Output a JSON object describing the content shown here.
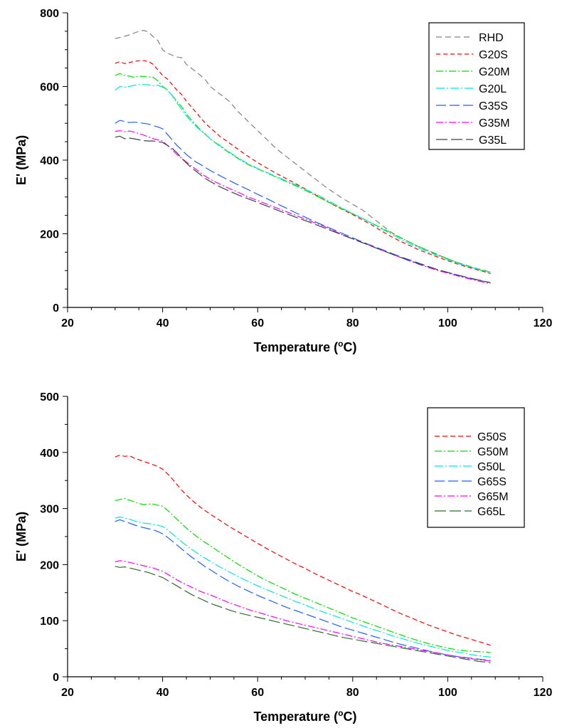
{
  "chart_data": [
    {
      "type": "line",
      "title": "",
      "xlabel": "Temperature (",
      "xlabel_sup": "o",
      "xlabel_end": "C)",
      "ylabel": "E' (MPa)",
      "xlim": [
        20,
        120
      ],
      "ylim": [
        0,
        800
      ],
      "xticks": [
        "20",
        "40",
        "60",
        "80",
        "100",
        "120"
      ],
      "yticks": [
        "0",
        "200",
        "400",
        "600",
        "800"
      ],
      "legend_position": "top-right",
      "x": [
        30,
        31,
        32,
        33,
        34,
        35,
        36,
        37,
        38,
        39,
        40,
        41,
        42,
        43,
        44,
        45,
        46,
        47,
        48,
        49,
        50,
        52,
        54,
        56,
        58,
        60,
        62,
        64,
        66,
        68,
        70,
        72,
        74,
        76,
        78,
        80,
        82,
        84,
        86,
        88,
        90,
        92,
        94,
        96,
        98,
        100,
        102,
        104,
        106,
        108,
        109
      ],
      "series": [
        {
          "name": "RHD",
          "color": "#808080",
          "dash": "8,5",
          "values": [
            730,
            733,
            736,
            740,
            745,
            750,
            752,
            748,
            735,
            725,
            700,
            690,
            685,
            680,
            678,
            660,
            650,
            640,
            630,
            618,
            600,
            580,
            560,
            530,
            505,
            480,
            455,
            430,
            410,
            390,
            370,
            350,
            330,
            312,
            295,
            280,
            265,
            245,
            225,
            205,
            190,
            177,
            164,
            153,
            142,
            132,
            122,
            114,
            106,
            100,
            95
          ]
        },
        {
          "name": "G20S",
          "color": "#ff0000",
          "dash": "6,4",
          "values": [
            663,
            667,
            662,
            665,
            668,
            670,
            670,
            668,
            660,
            645,
            630,
            620,
            605,
            590,
            578,
            560,
            545,
            530,
            515,
            500,
            488,
            465,
            447,
            428,
            410,
            393,
            378,
            363,
            350,
            336,
            322,
            307,
            292,
            278,
            265,
            252,
            238,
            224,
            208,
            193,
            180,
            168,
            156,
            146,
            136,
            127,
            118,
            110,
            103,
            96,
            92
          ]
        },
        {
          "name": "G20M",
          "color": "#00dd00",
          "dash": "10,3,2,3",
          "values": [
            630,
            635,
            630,
            628,
            625,
            628,
            627,
            626,
            625,
            615,
            600,
            590,
            575,
            560,
            545,
            525,
            510,
            495,
            482,
            470,
            458,
            438,
            420,
            403,
            388,
            376,
            365,
            353,
            342,
            330,
            318,
            305,
            292,
            279,
            266,
            254,
            242,
            229,
            216,
            203,
            190,
            177,
            165,
            154,
            143,
            132,
            122,
            113,
            105,
            97,
            93
          ]
        },
        {
          "name": "G20L",
          "color": "#00e5e5",
          "dash": "12,3,2,3",
          "values": [
            590,
            600,
            598,
            600,
            603,
            605,
            605,
            604,
            602,
            603,
            598,
            590,
            575,
            555,
            538,
            520,
            505,
            492,
            480,
            470,
            458,
            440,
            422,
            405,
            390,
            377,
            366,
            355,
            344,
            333,
            321,
            309,
            296,
            282,
            268,
            255,
            242,
            228,
            214,
            200,
            186,
            173,
            161,
            150,
            140,
            130,
            120,
            112,
            105,
            99,
            96
          ]
        },
        {
          "name": "G35S",
          "color": "#2060ff",
          "dash": "14,5",
          "values": [
            500,
            508,
            505,
            502,
            503,
            502,
            500,
            498,
            494,
            490,
            485,
            470,
            455,
            440,
            428,
            415,
            405,
            395,
            388,
            380,
            372,
            358,
            345,
            332,
            320,
            307,
            295,
            282,
            270,
            257,
            245,
            233,
            222,
            211,
            200,
            189,
            178,
            168,
            158,
            148,
            138,
            129,
            120,
            111,
            102,
            95,
            88,
            81,
            75,
            70,
            68
          ]
        },
        {
          "name": "G35M",
          "color": "#ff00ff",
          "dash": "10,3,2,3",
          "values": [
            478,
            480,
            477,
            479,
            476,
            472,
            468,
            463,
            458,
            455,
            452,
            440,
            428,
            415,
            405,
            395,
            385,
            375,
            365,
            356,
            348,
            335,
            323,
            312,
            300,
            290,
            280,
            270,
            260,
            250,
            240,
            230,
            220,
            208,
            197,
            186,
            176,
            166,
            156,
            146,
            136,
            126,
            117,
            108,
            100,
            93,
            86,
            79,
            73,
            67,
            64
          ]
        },
        {
          "name": "G35L",
          "color": "#404040",
          "dash": "16,5",
          "values": [
            462,
            465,
            458,
            460,
            458,
            455,
            453,
            452,
            452,
            450,
            448,
            440,
            432,
            420,
            405,
            392,
            380,
            370,
            360,
            350,
            342,
            328,
            316,
            305,
            295,
            285,
            275,
            265,
            255,
            245,
            236,
            226,
            216,
            206,
            196,
            186,
            176,
            166,
            156,
            146,
            136,
            127,
            118,
            110,
            102,
            95,
            88,
            82,
            76,
            70,
            67
          ]
        }
      ]
    },
    {
      "type": "line",
      "title": "",
      "xlabel": "Temperature (",
      "xlabel_sup": "o",
      "xlabel_end": "C)",
      "ylabel": "E' (MPa)",
      "xlim": [
        20,
        120
      ],
      "ylim": [
        0,
        500
      ],
      "xticks": [
        "20",
        "40",
        "60",
        "80",
        "100",
        "120"
      ],
      "yticks": [
        "0",
        "100",
        "200",
        "300",
        "400",
        "500"
      ],
      "legend_position": "top-right",
      "x": [
        30,
        31,
        32,
        33,
        34,
        35,
        36,
        37,
        38,
        39,
        40,
        41,
        42,
        43,
        44,
        45,
        46,
        47,
        48,
        49,
        50,
        52,
        54,
        56,
        58,
        60,
        62,
        64,
        66,
        68,
        70,
        72,
        74,
        76,
        78,
        80,
        82,
        84,
        86,
        88,
        90,
        92,
        94,
        96,
        98,
        100,
        102,
        104,
        106,
        108,
        109
      ],
      "series": [
        {
          "name": "G50S",
          "color": "#ff0000",
          "dash": "7,4",
          "values": [
            392,
            395,
            393,
            394,
            390,
            387,
            384,
            381,
            378,
            375,
            370,
            362,
            353,
            343,
            333,
            324,
            316,
            309,
            302,
            296,
            290,
            279,
            268,
            258,
            248,
            238,
            228,
            219,
            210,
            201,
            193,
            184,
            176,
            168,
            160,
            152,
            145,
            137,
            129,
            121,
            113,
            106,
            99,
            92,
            86,
            80,
            74,
            69,
            64,
            59,
            56
          ]
        },
        {
          "name": "G50M",
          "color": "#00dd00",
          "dash": "10,3,2,3",
          "values": [
            314,
            316,
            318,
            315,
            312,
            309,
            307,
            308,
            308,
            306,
            304,
            297,
            289,
            281,
            273,
            265,
            258,
            251,
            245,
            239,
            234,
            222,
            211,
            200,
            190,
            180,
            171,
            163,
            155,
            147,
            140,
            133,
            126,
            119,
            112,
            105,
            99,
            93,
            87,
            81,
            75,
            69,
            64,
            59,
            55,
            51,
            48,
            46,
            45,
            44,
            43
          ]
        },
        {
          "name": "G50L",
          "color": "#00e5e5",
          "dash": "12,3,2,3",
          "values": [
            283,
            285,
            283,
            281,
            278,
            276,
            274,
            273,
            272,
            270,
            268,
            262,
            255,
            248,
            241,
            234,
            228,
            222,
            216,
            211,
            206,
            196,
            187,
            178,
            170,
            162,
            155,
            148,
            141,
            134,
            128,
            121,
            115,
            109,
            103,
            97,
            91,
            85,
            80,
            74,
            69,
            64,
            59,
            55,
            51,
            47,
            44,
            41,
            38,
            36,
            35
          ]
        },
        {
          "name": "G65S",
          "color": "#2060ff",
          "dash": "14,5",
          "values": [
            277,
            280,
            277,
            274,
            271,
            268,
            266,
            264,
            262,
            259,
            255,
            249,
            242,
            235,
            228,
            221,
            214,
            208,
            202,
            196,
            191,
            180,
            170,
            161,
            153,
            145,
            138,
            131,
            124,
            118,
            112,
            106,
            100,
            94,
            88,
            83,
            78,
            73,
            68,
            63,
            58,
            54,
            50,
            46,
            42,
            39,
            36,
            34,
            32,
            30,
            29
          ]
        },
        {
          "name": "G65M",
          "color": "#ff00ff",
          "dash": "10,3,2,3",
          "values": [
            205,
            207,
            206,
            204,
            202,
            200,
            198,
            196,
            194,
            191,
            188,
            183,
            178,
            173,
            168,
            164,
            160,
            156,
            152,
            149,
            146,
            139,
            132,
            126,
            120,
            115,
            110,
            105,
            100,
            96,
            92,
            88,
            84,
            80,
            76,
            72,
            68,
            64,
            60,
            57,
            54,
            51,
            48,
            45,
            42,
            39,
            36,
            33,
            31,
            29,
            28
          ]
        },
        {
          "name": "G65L",
          "color": "#2f6b2f",
          "dash": "16,5",
          "values": [
            197,
            195,
            196,
            194,
            192,
            190,
            188,
            186,
            183,
            180,
            177,
            172,
            167,
            162,
            157,
            152,
            147,
            143,
            139,
            135,
            131,
            125,
            119,
            114,
            110,
            106,
            102,
            98,
            94,
            90,
            86,
            82,
            78,
            74,
            70,
            67,
            64,
            61,
            58,
            55,
            52,
            49,
            46,
            43,
            40,
            37,
            34,
            31,
            28,
            26,
            25
          ]
        }
      ]
    }
  ]
}
